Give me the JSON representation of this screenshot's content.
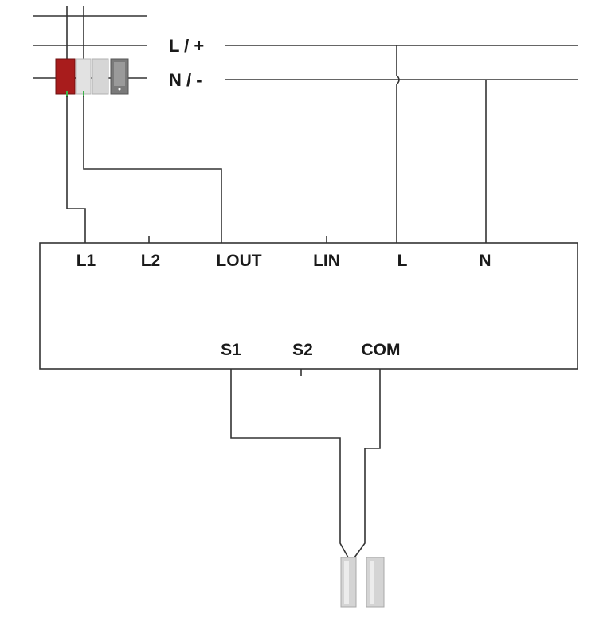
{
  "bus": {
    "line_label": "L / +",
    "neutral_label": "N / -"
  },
  "module": {
    "top_terminals": [
      "L1",
      "L2",
      "LOUT",
      "LIN",
      "L",
      "N"
    ],
    "bottom_terminals": [
      "S1",
      "S2",
      "COM"
    ]
  },
  "colors": {
    "wire": "#333333",
    "breaker_red": "#a81c1c",
    "breaker_grey": "#d9d9d9",
    "breaker_dark": "#7a7a7a",
    "contact_green": "#3cb34a",
    "sensor_grey": "#d4d4d4"
  }
}
